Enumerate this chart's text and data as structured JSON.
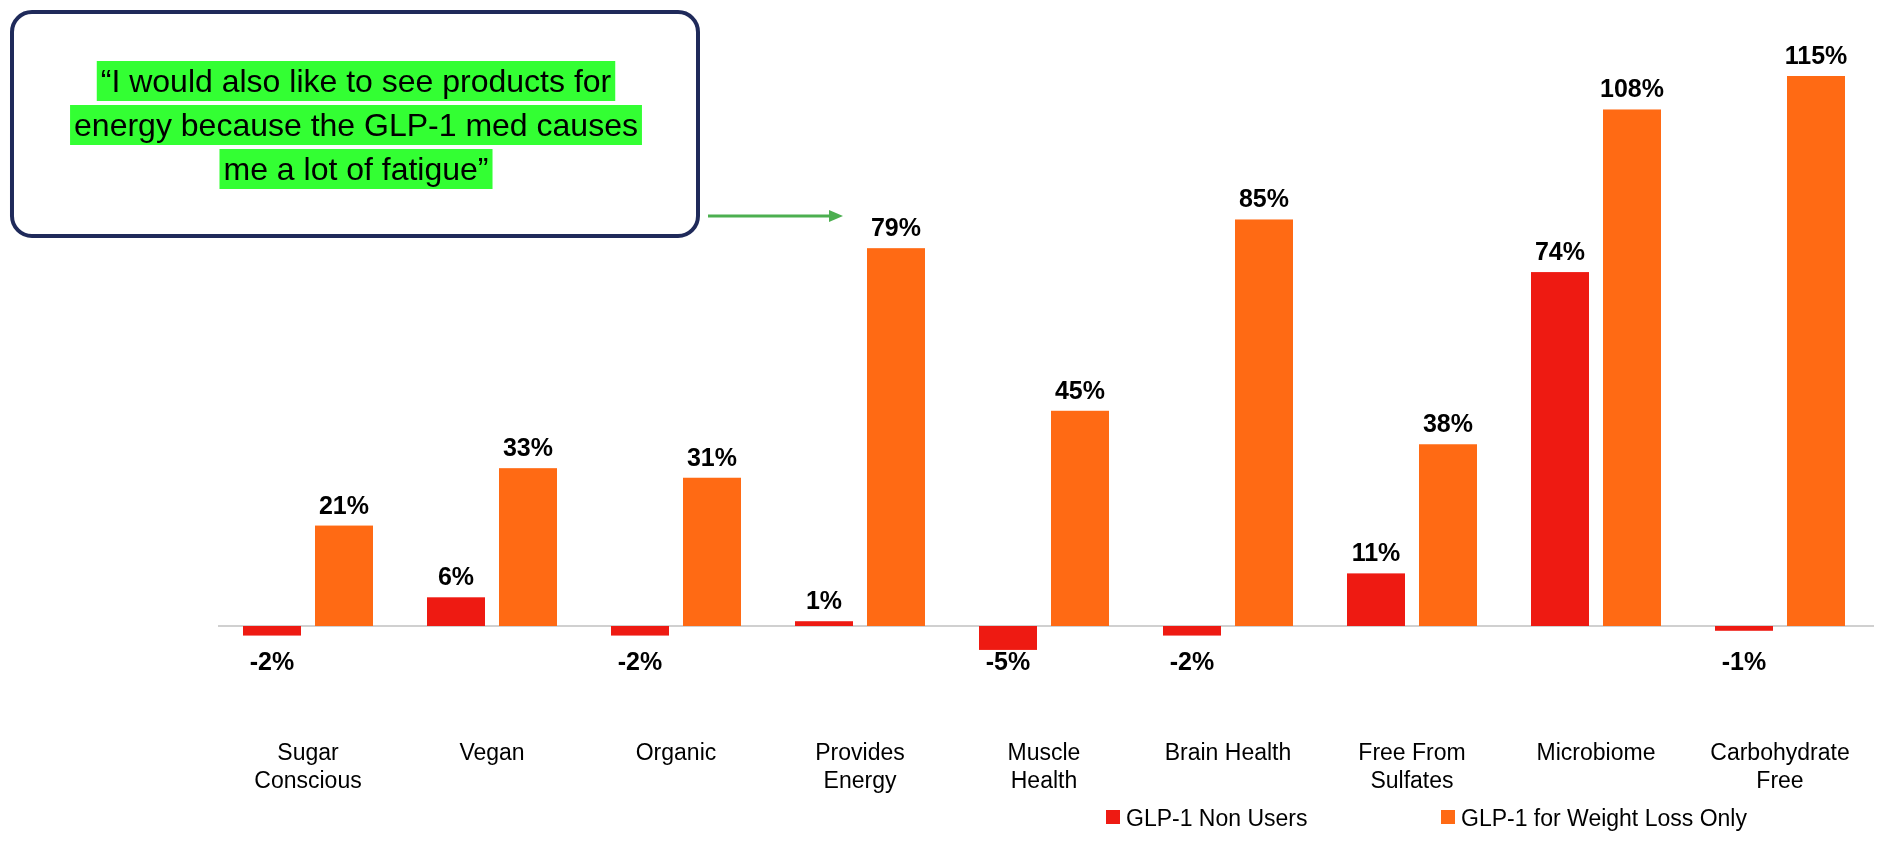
{
  "chart_data": {
    "type": "bar",
    "categories": [
      "Sugar Conscious",
      "Vegan",
      "Organic",
      "Provides Energy",
      "Muscle Health",
      "Brain Health",
      "Free From Sulfates",
      "Microbiome",
      "Carbohydrate Free"
    ],
    "series": [
      {
        "name": "GLP-1 Non Users",
        "color": "#ee1a12",
        "values": [
          -2,
          6,
          -2,
          1,
          -5,
          -2,
          11,
          74,
          -1
        ],
        "value_labels": [
          "-2%",
          "6%",
          "-2%",
          "1%",
          "-5%",
          "-2%",
          "11%",
          "74%",
          "-1%"
        ]
      },
      {
        "name": "GLP-1 for Weight Loss Only",
        "color": "#ff6a14",
        "values": [
          21,
          33,
          31,
          79,
          45,
          85,
          38,
          108,
          115
        ],
        "value_labels": [
          "21%",
          "33%",
          "31%",
          "79%",
          "45%",
          "85%",
          "38%",
          "108%",
          "115%"
        ]
      }
    ],
    "legend": "bottom right",
    "annotations": [
      "“I would also like to see products for energy because the GLP-1 med causes me a lot of fatigue”"
    ]
  }
}
